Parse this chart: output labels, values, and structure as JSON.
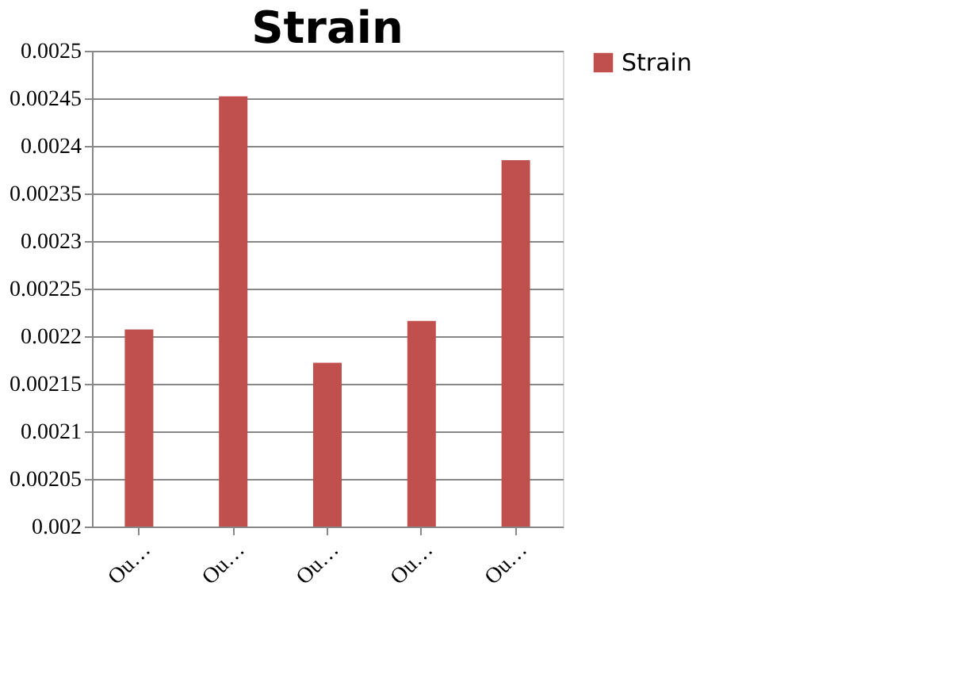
{
  "chart_data": {
    "type": "bar",
    "title": "Strain",
    "categories": [
      "Ou…",
      "Ou…",
      "Ou…",
      "Ou…",
      "Ou…"
    ],
    "series": [
      {
        "name": "Strain",
        "color": "#c0504d",
        "values": [
          0.002207,
          0.002452,
          0.002172,
          0.002216,
          0.002385
        ]
      }
    ],
    "ylim": [
      0.002,
      0.0025
    ],
    "yticks": [
      0.002,
      0.00205,
      0.0021,
      0.00215,
      0.0022,
      0.00225,
      0.0023,
      0.00235,
      0.0024,
      0.00245,
      0.0025
    ],
    "grid": "y",
    "legend": "right"
  }
}
